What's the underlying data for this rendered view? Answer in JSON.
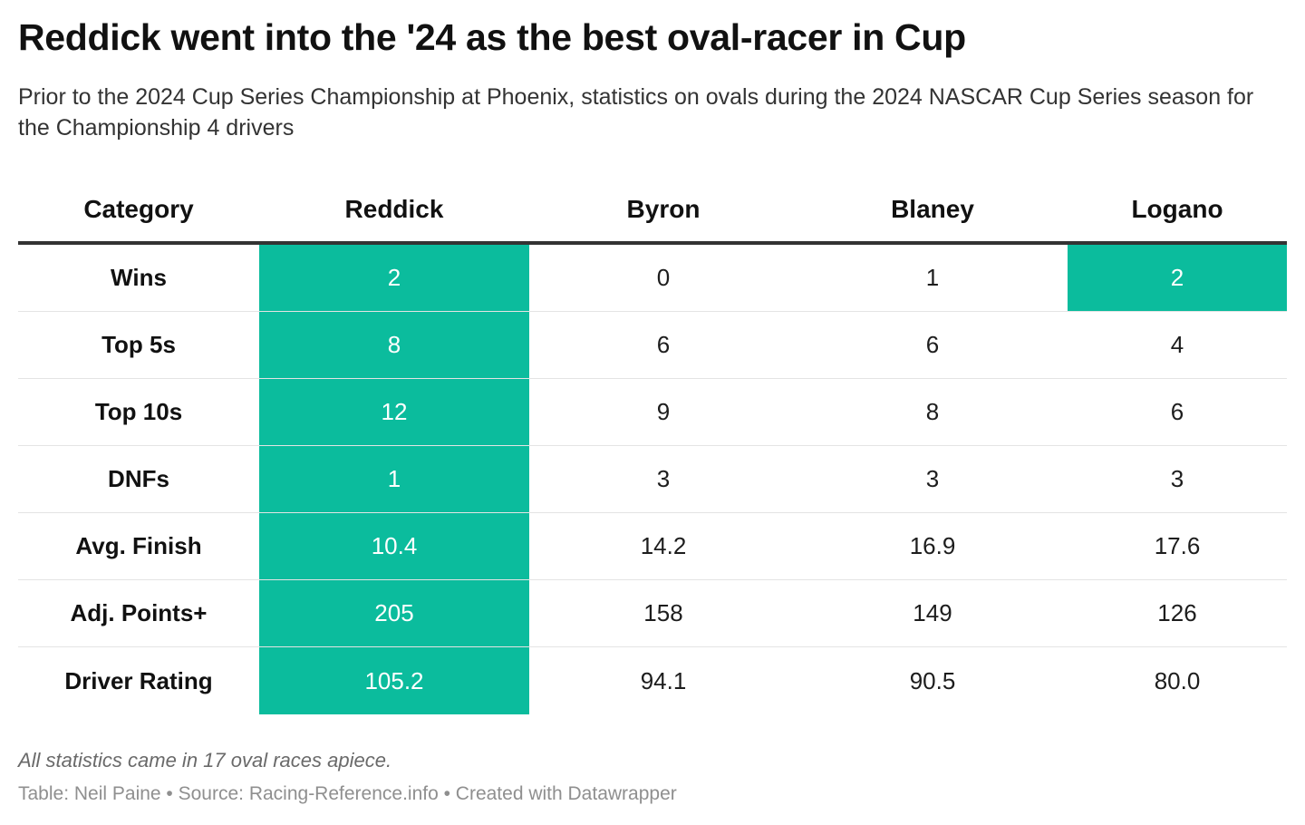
{
  "title": "Reddick went into the '24 as the best oval-racer in Cup",
  "subtitle": "Prior to the 2024 Cup Series Championship at Phoenix, statistics on ovals during the 2024 NASCAR Cup Series season for the Championship 4 drivers",
  "notes": "All statistics came in 17 oval races apiece.",
  "footer": "Table: Neil Paine • Source: Racing-Reference.info • Created with Datawrapper",
  "highlight_color": "#0bbc9d",
  "chart_data": {
    "type": "table",
    "columns": [
      "Category",
      "Reddick",
      "Byron",
      "Blaney",
      "Logano"
    ],
    "rows": [
      {
        "category": "Wins",
        "values": [
          "2",
          "0",
          "1",
          "2"
        ],
        "highlight": [
          true,
          false,
          false,
          true
        ]
      },
      {
        "category": "Top 5s",
        "values": [
          "8",
          "6",
          "6",
          "4"
        ],
        "highlight": [
          true,
          false,
          false,
          false
        ]
      },
      {
        "category": "Top 10s",
        "values": [
          "12",
          "9",
          "8",
          "6"
        ],
        "highlight": [
          true,
          false,
          false,
          false
        ]
      },
      {
        "category": "DNFs",
        "values": [
          "1",
          "3",
          "3",
          "3"
        ],
        "highlight": [
          true,
          false,
          false,
          false
        ]
      },
      {
        "category": "Avg. Finish",
        "values": [
          "10.4",
          "14.2",
          "16.9",
          "17.6"
        ],
        "highlight": [
          true,
          false,
          false,
          false
        ]
      },
      {
        "category": "Adj. Points+",
        "values": [
          "205",
          "158",
          "149",
          "126"
        ],
        "highlight": [
          true,
          false,
          false,
          false
        ]
      },
      {
        "category": "Driver Rating",
        "values": [
          "105.2",
          "94.1",
          "90.5",
          "80.0"
        ],
        "highlight": [
          true,
          false,
          false,
          false
        ]
      }
    ]
  }
}
